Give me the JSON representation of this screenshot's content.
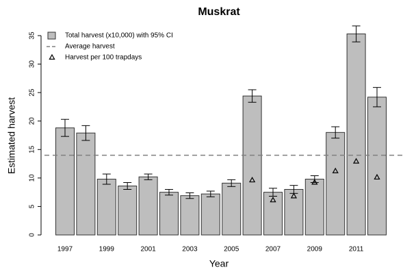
{
  "chart_data": {
    "type": "bar",
    "title": "Muskrat",
    "xlabel": "Year",
    "ylabel": "Estimated harvest",
    "categories": [
      "1997",
      null,
      "1999",
      null,
      "2001",
      null,
      "2003",
      null,
      "2005",
      null,
      "2007",
      null,
      "2009",
      null,
      "2011",
      null
    ],
    "series": [
      {
        "name": "Total harvest (x10,000) with 95% CI",
        "color": "#bebebe",
        "values": [
          18.8,
          17.9,
          9.8,
          8.6,
          10.2,
          7.5,
          6.9,
          7.2,
          9.1,
          24.4,
          7.5,
          8.0,
          9.8,
          18.0,
          35.3,
          24.2
        ],
        "errors": [
          1.5,
          1.3,
          0.9,
          0.6,
          0.5,
          0.5,
          0.5,
          0.5,
          0.6,
          1.1,
          0.7,
          0.7,
          0.6,
          1.0,
          1.4,
          1.7
        ]
      },
      {
        "name": "Harvest per 100 trapdays",
        "marker": "triangle",
        "values": [
          null,
          null,
          null,
          null,
          null,
          null,
          null,
          null,
          null,
          9.6,
          6.1,
          6.8,
          9.2,
          11.2,
          12.9,
          10.1
        ]
      }
    ],
    "reference_line": {
      "name": "Average harvest",
      "value": 14,
      "color": "#808080",
      "dash": true
    },
    "ylim": [
      0,
      35
    ],
    "yticks": [
      0,
      5,
      10,
      15,
      20,
      25,
      30,
      35
    ],
    "grid": false,
    "legend": "top-left"
  }
}
